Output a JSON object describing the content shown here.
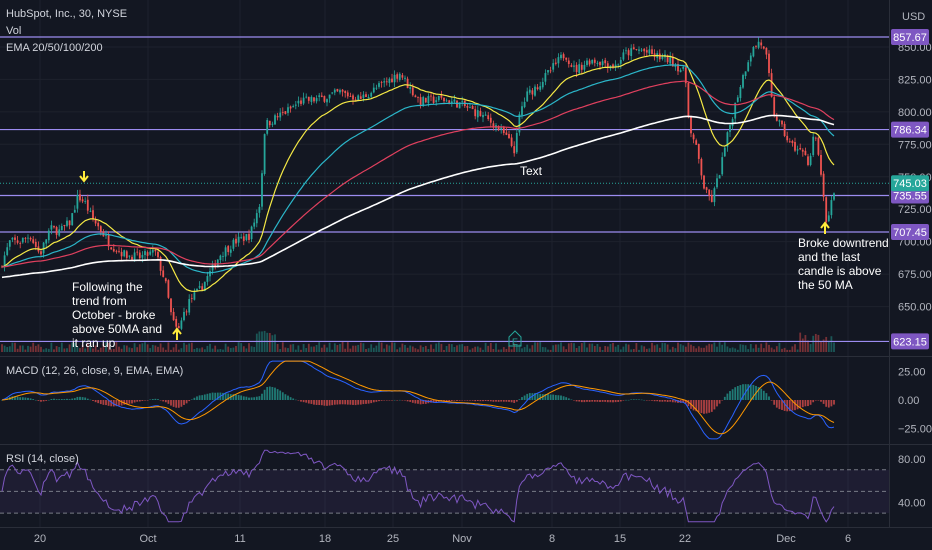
{
  "header": {
    "symbol": "HubSpot, Inc., 30, NYSE",
    "vol": "Vol",
    "ema": "EMA 20/50/100/200",
    "currency": "USD"
  },
  "colors": {
    "background": "#131722",
    "up": "#26a69a",
    "down": "#ef5350",
    "hline": "#9c8cf0",
    "tag": "#7e57c2",
    "price_tag": "#26a69a",
    "ema20": "#f5e945",
    "ema50": "#2bb6c9",
    "ema100": "#e0405e",
    "ema200": "#ffffff",
    "macd": "#2962ff",
    "signal": "#ff9800",
    "rsi": "#7e57c2",
    "arrow": "#ffeb3b"
  },
  "chart_data": [
    {
      "type": "candlestick",
      "panel": "price",
      "ylim": [
        615,
        880
      ],
      "y_ticks": [
        650,
        675,
        700,
        725,
        750,
        775,
        800,
        825,
        850
      ],
      "price_levels": [
        {
          "value": 857.67,
          "label": "857.67"
        },
        {
          "value": 786.34,
          "label": "786.34"
        },
        {
          "value": 735.55,
          "label": "735.55"
        },
        {
          "value": 707.45,
          "label": "707.45"
        },
        {
          "value": 623.15,
          "label": "623.15"
        }
      ],
      "last_price": {
        "value": 745.03,
        "label": "745.03"
      },
      "x_ticks": [
        "20",
        "Oct",
        "11",
        "18",
        "25",
        "Nov",
        "8",
        "15",
        "22",
        "Dec",
        "6"
      ],
      "series": [
        {
          "name": "EMA 20",
          "key": "ema20"
        },
        {
          "name": "EMA 50",
          "key": "ema50"
        },
        {
          "name": "EMA 100",
          "key": "ema100"
        },
        {
          "name": "EMA 200",
          "key": "ema200"
        }
      ],
      "price_path": [
        [
          0,
          680
        ],
        [
          10,
          700
        ],
        [
          20,
          700
        ],
        [
          30,
          705
        ],
        [
          40,
          690
        ],
        [
          50,
          710
        ],
        [
          60,
          708
        ],
        [
          70,
          715
        ],
        [
          78,
          735
        ],
        [
          85,
          730
        ],
        [
          92,
          718
        ],
        [
          100,
          710
        ],
        [
          110,
          698
        ],
        [
          125,
          690
        ],
        [
          140,
          688
        ],
        [
          155,
          692
        ],
        [
          165,
          670
        ],
        [
          172,
          640
        ],
        [
          178,
          630
        ],
        [
          184,
          645
        ],
        [
          190,
          655
        ],
        [
          200,
          663
        ],
        [
          210,
          676
        ],
        [
          220,
          690
        ],
        [
          235,
          700
        ],
        [
          250,
          705
        ],
        [
          260,
          730
        ],
        [
          265,
          790
        ],
        [
          275,
          795
        ],
        [
          290,
          802
        ],
        [
          300,
          808
        ],
        [
          320,
          810
        ],
        [
          340,
          815
        ],
        [
          360,
          810
        ],
        [
          380,
          820
        ],
        [
          400,
          830
        ],
        [
          410,
          818
        ],
        [
          420,
          808
        ],
        [
          440,
          810
        ],
        [
          460,
          806
        ],
        [
          480,
          798
        ],
        [
          495,
          790
        ],
        [
          505,
          782
        ],
        [
          515,
          770
        ],
        [
          520,
          800
        ],
        [
          527,
          813
        ],
        [
          540,
          822
        ],
        [
          555,
          836
        ],
        [
          565,
          845
        ],
        [
          575,
          832
        ],
        [
          590,
          840
        ],
        [
          605,
          838
        ],
        [
          615,
          835
        ],
        [
          625,
          845
        ],
        [
          640,
          848
        ],
        [
          655,
          843
        ],
        [
          670,
          840
        ],
        [
          685,
          830
        ],
        [
          690,
          785
        ],
        [
          697,
          770
        ],
        [
          705,
          738
        ],
        [
          712,
          732
        ],
        [
          720,
          755
        ],
        [
          730,
          790
        ],
        [
          740,
          820
        ],
        [
          750,
          845
        ],
        [
          760,
          855
        ],
        [
          767,
          840
        ],
        [
          773,
          800
        ],
        [
          780,
          790
        ],
        [
          790,
          775
        ],
        [
          800,
          770
        ],
        [
          808,
          760
        ],
        [
          815,
          785
        ],
        [
          820,
          760
        ],
        [
          826,
          712
        ],
        [
          830,
          725
        ],
        [
          836,
          745
        ]
      ]
    },
    {
      "type": "line",
      "panel": "MACD",
      "title": "MACD (12, 26, close, 9, EMA, EMA)",
      "ylim": [
        -35,
        35
      ],
      "y_ticks": [
        -25,
        0,
        25
      ],
      "y_tick_labels": [
        "−25.00",
        "0.00",
        "25.00"
      ]
    },
    {
      "type": "line",
      "panel": "RSI",
      "title": "RSI (14, close)",
      "ylim": [
        20,
        90
      ],
      "y_ticks": [
        40,
        80
      ],
      "y_tick_labels": [
        "40.00",
        "80.00"
      ]
    }
  ],
  "annotations": {
    "left": [
      "Following the",
      "trend from",
      "October - broke",
      "above 50MA and",
      "it ran up"
    ],
    "middle": "Text",
    "right": [
      "Broke downtrend",
      "and the last",
      "candle is above",
      "the 50 MA"
    ],
    "earnings_marker": "E"
  }
}
